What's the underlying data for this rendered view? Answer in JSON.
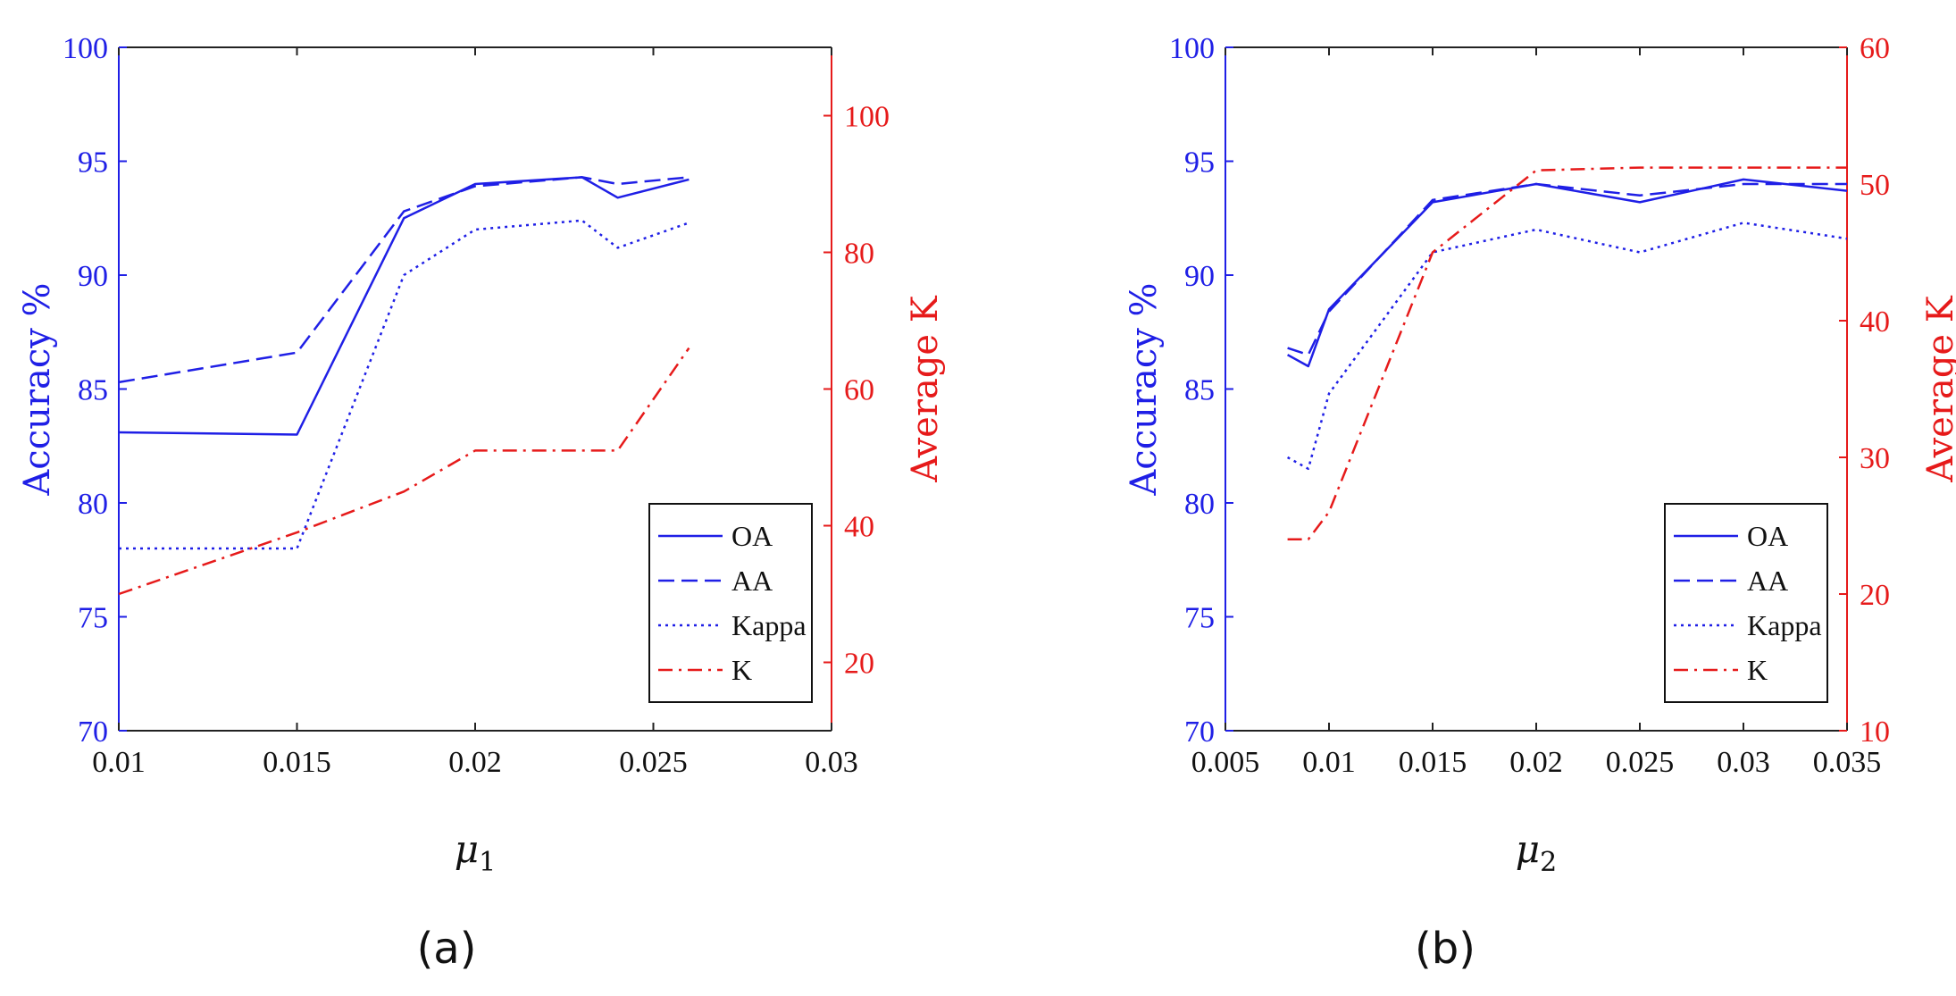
{
  "chart_data": [
    {
      "type": "line",
      "panel_label": "(a)",
      "xlabel": "μ",
      "xlabel_sub": "1",
      "ylabel_left": "Accuracy %",
      "ylabel_right": "Average K",
      "xlim": [
        0.01,
        0.03
      ],
      "xticks": [
        "0.01",
        "0.015",
        "0.02",
        "0.025",
        "0.03"
      ],
      "xtick_values": [
        0.01,
        0.015,
        0.02,
        0.025,
        0.03
      ],
      "ylim_left": [
        70,
        100
      ],
      "yticks_left": [
        "70",
        "75",
        "80",
        "85",
        "90",
        "95",
        "100"
      ],
      "ylim_right": [
        10,
        110
      ],
      "yticks_right": [
        "20",
        "40",
        "60",
        "80",
        "100"
      ],
      "legend_position": "bottom-right",
      "series": [
        {
          "name": "OA",
          "axis": "left",
          "color": "#1f1fe6",
          "style": "solid",
          "x": [
            0.01,
            0.015,
            0.018,
            0.02,
            0.023,
            0.024,
            0.026
          ],
          "y": [
            83.1,
            83.0,
            92.5,
            94.0,
            94.3,
            93.4,
            94.2
          ]
        },
        {
          "name": "AA",
          "axis": "left",
          "color": "#1f1fe6",
          "style": "dashed",
          "x": [
            0.01,
            0.015,
            0.018,
            0.02,
            0.023,
            0.024,
            0.026
          ],
          "y": [
            85.3,
            86.6,
            92.8,
            93.9,
            94.3,
            94.0,
            94.3
          ]
        },
        {
          "name": "Kappa",
          "axis": "left",
          "color": "#1f1fe6",
          "style": "dotted",
          "x": [
            0.01,
            0.015,
            0.018,
            0.02,
            0.023,
            0.024,
            0.026
          ],
          "y": [
            78.0,
            78.0,
            90.0,
            92.0,
            92.4,
            91.2,
            92.3
          ]
        },
        {
          "name": "K",
          "axis": "right",
          "color": "#e61a1a",
          "style": "dashdot",
          "x": [
            0.01,
            0.015,
            0.018,
            0.02,
            0.023,
            0.024,
            0.026
          ],
          "y": [
            30,
            39,
            45,
            51,
            51,
            51,
            66
          ]
        }
      ]
    },
    {
      "type": "line",
      "panel_label": "(b)",
      "xlabel": "μ",
      "xlabel_sub": "2",
      "ylabel_left": "Accuracy %",
      "ylabel_right": "Average K",
      "xlim": [
        0.005,
        0.035
      ],
      "xticks": [
        "0.005",
        "0.01",
        "0.015",
        "0.02",
        "0.025",
        "0.03",
        "0.035"
      ],
      "xtick_values": [
        0.005,
        0.01,
        0.015,
        0.02,
        0.025,
        0.03,
        0.035
      ],
      "ylim_left": [
        70,
        100
      ],
      "yticks_left": [
        "70",
        "75",
        "80",
        "85",
        "90",
        "95",
        "100"
      ],
      "ylim_right": [
        10,
        60
      ],
      "yticks_right": [
        "10",
        "20",
        "30",
        "40",
        "50",
        "60"
      ],
      "legend_position": "bottom-right",
      "series": [
        {
          "name": "OA",
          "axis": "left",
          "color": "#1f1fe6",
          "style": "solid",
          "x": [
            0.008,
            0.009,
            0.01,
            0.015,
            0.02,
            0.025,
            0.03,
            0.035
          ],
          "y": [
            86.5,
            86.0,
            88.5,
            93.2,
            94.0,
            93.2,
            94.2,
            93.7
          ]
        },
        {
          "name": "AA",
          "axis": "left",
          "color": "#1f1fe6",
          "style": "dashed",
          "x": [
            0.008,
            0.009,
            0.01,
            0.015,
            0.02,
            0.025,
            0.03,
            0.035
          ],
          "y": [
            86.8,
            86.5,
            88.4,
            93.3,
            94.0,
            93.5,
            94.0,
            94.0
          ]
        },
        {
          "name": "Kappa",
          "axis": "left",
          "color": "#1f1fe6",
          "style": "dotted",
          "x": [
            0.008,
            0.009,
            0.01,
            0.015,
            0.02,
            0.025,
            0.03,
            0.035
          ],
          "y": [
            82.0,
            81.5,
            84.8,
            91.0,
            92.0,
            91.0,
            92.3,
            91.6
          ]
        },
        {
          "name": "K",
          "axis": "right",
          "color": "#e61a1a",
          "style": "dashdot",
          "x": [
            0.008,
            0.009,
            0.01,
            0.015,
            0.02,
            0.025,
            0.03,
            0.035
          ],
          "y": [
            24,
            24,
            26,
            45,
            51,
            51.2,
            51.2,
            51.2
          ]
        }
      ]
    }
  ]
}
